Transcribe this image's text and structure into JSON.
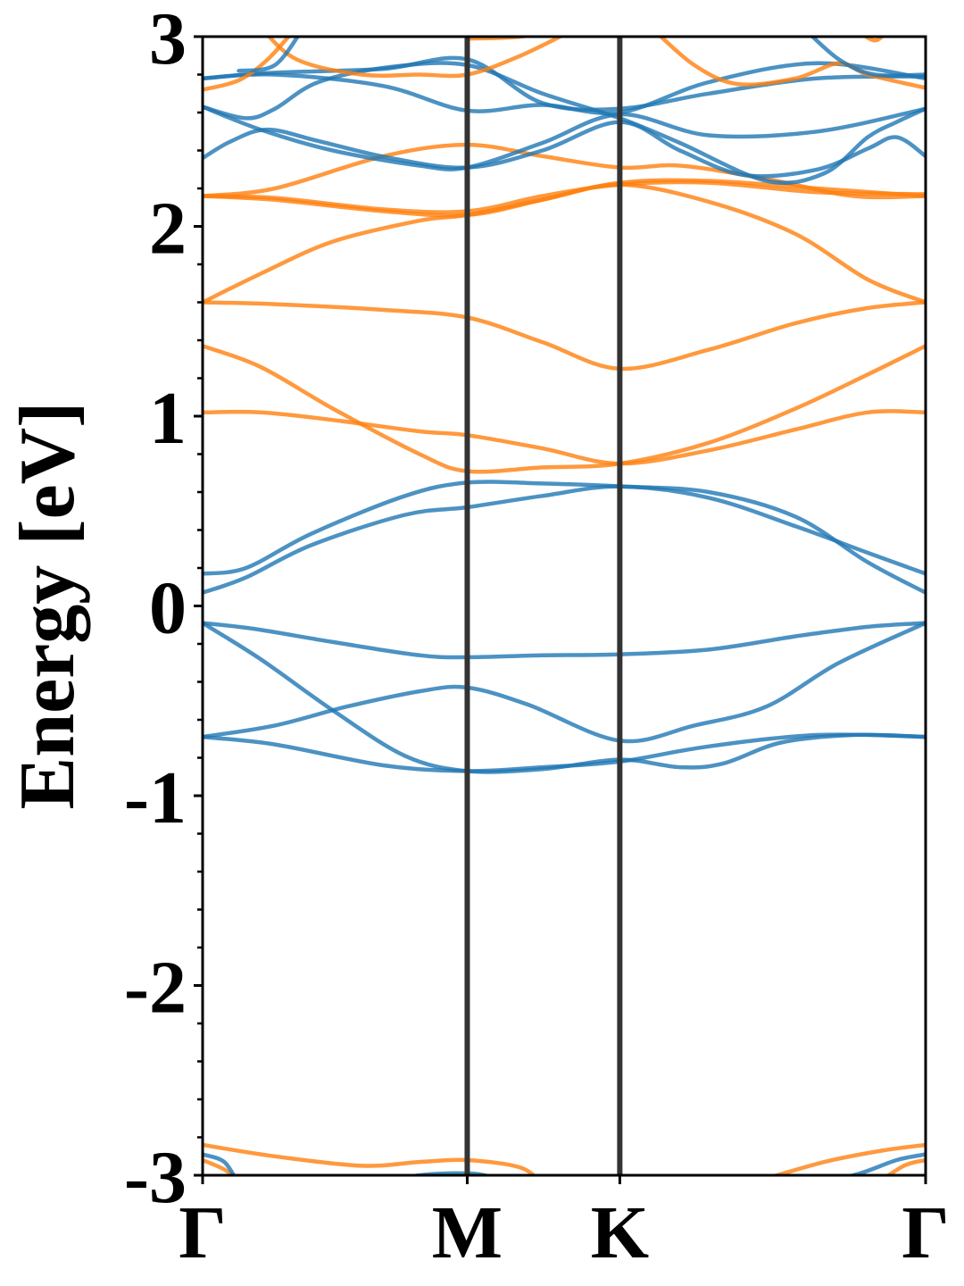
{
  "chart_data": {
    "type": "line",
    "title": "",
    "xlabel": "",
    "ylabel": "Energy [eV]",
    "ylim": [
      -3,
      3
    ],
    "xlim": [
      0,
      1
    ],
    "grid": false,
    "legend": "none",
    "x_ticks": [
      {
        "label": "Γ",
        "x": 0.0
      },
      {
        "label": "M",
        "x": 0.366
      },
      {
        "label": "K",
        "x": 0.577
      },
      {
        "label": "Γ",
        "x": 1.0
      }
    ],
    "y_ticks": [
      {
        "label": "3",
        "y": 3
      },
      {
        "label": "2",
        "y": 2
      },
      {
        "label": "1",
        "y": 1
      },
      {
        "label": "0",
        "y": 0
      },
      {
        "label": "-1",
        "y": -1
      },
      {
        "label": "-2",
        "y": -2
      },
      {
        "label": "-3",
        "y": -3
      }
    ],
    "y_minor_step": 0.2,
    "colors": {
      "blue": "#1f77b4",
      "orange": "#ff7f0e",
      "vline": "#333333"
    },
    "series": [
      {
        "color": "blue",
        "points": [
          [
            0,
            -0.09
          ],
          [
            0.07,
            -0.12
          ],
          [
            0.18,
            -0.19
          ],
          [
            0.3,
            -0.26
          ],
          [
            0.366,
            -0.27
          ],
          [
            0.47,
            -0.26
          ],
          [
            0.577,
            -0.255
          ],
          [
            0.7,
            -0.23
          ],
          [
            0.82,
            -0.16
          ],
          [
            0.92,
            -0.11
          ],
          [
            1.0,
            -0.09
          ]
        ]
      },
      {
        "color": "blue",
        "points": [
          [
            0,
            -0.09
          ],
          [
            0.08,
            -0.28
          ],
          [
            0.18,
            -0.55
          ],
          [
            0.28,
            -0.79
          ],
          [
            0.366,
            -0.87
          ],
          [
            0.47,
            -0.86
          ],
          [
            0.577,
            -0.81
          ],
          [
            0.66,
            -0.85
          ],
          [
            0.72,
            -0.83
          ],
          [
            0.8,
            -0.72
          ],
          [
            0.9,
            -0.68
          ],
          [
            1.0,
            -0.69
          ]
        ]
      },
      {
        "color": "blue",
        "points": [
          [
            0,
            -0.69
          ],
          [
            0.1,
            -0.63
          ],
          [
            0.2,
            -0.53
          ],
          [
            0.3,
            -0.45
          ],
          [
            0.366,
            -0.43
          ],
          [
            0.45,
            -0.52
          ],
          [
            0.577,
            -0.71
          ],
          [
            0.68,
            -0.63
          ],
          [
            0.78,
            -0.53
          ],
          [
            0.88,
            -0.3
          ],
          [
            1.0,
            -0.09
          ]
        ]
      },
      {
        "color": "blue",
        "points": [
          [
            0,
            -0.69
          ],
          [
            0.1,
            -0.73
          ],
          [
            0.25,
            -0.84
          ],
          [
            0.366,
            -0.87
          ],
          [
            0.47,
            -0.85
          ],
          [
            0.577,
            -0.82
          ],
          [
            0.7,
            -0.74
          ],
          [
            0.85,
            -0.68
          ],
          [
            1.0,
            -0.69
          ]
        ]
      },
      {
        "color": "blue",
        "points": [
          [
            0,
            0.07
          ],
          [
            0.06,
            0.15
          ],
          [
            0.15,
            0.32
          ],
          [
            0.28,
            0.48
          ],
          [
            0.366,
            0.52
          ],
          [
            0.47,
            0.58
          ],
          [
            0.577,
            0.63
          ],
          [
            0.7,
            0.57
          ],
          [
            0.82,
            0.42
          ],
          [
            0.92,
            0.28
          ],
          [
            1.0,
            0.17
          ]
        ]
      },
      {
        "color": "blue",
        "points": [
          [
            0,
            0.17
          ],
          [
            0.06,
            0.2
          ],
          [
            0.15,
            0.38
          ],
          [
            0.28,
            0.58
          ],
          [
            0.366,
            0.65
          ],
          [
            0.47,
            0.645
          ],
          [
            0.577,
            0.63
          ],
          [
            0.7,
            0.6
          ],
          [
            0.82,
            0.47
          ],
          [
            0.92,
            0.23
          ],
          [
            1.0,
            0.07
          ]
        ]
      },
      {
        "color": "orange",
        "points": [
          [
            0,
            1.02
          ],
          [
            0.08,
            1.02
          ],
          [
            0.18,
            0.98
          ],
          [
            0.3,
            0.92
          ],
          [
            0.366,
            0.9
          ],
          [
            0.47,
            0.83
          ],
          [
            0.577,
            0.75
          ],
          [
            0.7,
            0.82
          ],
          [
            0.82,
            0.93
          ],
          [
            0.92,
            1.02
          ],
          [
            1.0,
            1.02
          ]
        ]
      },
      {
        "color": "orange",
        "points": [
          [
            0,
            1.37
          ],
          [
            0.08,
            1.26
          ],
          [
            0.18,
            1.04
          ],
          [
            0.3,
            0.8
          ],
          [
            0.366,
            0.71
          ],
          [
            0.47,
            0.73
          ],
          [
            0.577,
            0.75
          ],
          [
            0.7,
            0.86
          ],
          [
            0.82,
            1.04
          ],
          [
            0.92,
            1.22
          ],
          [
            1.0,
            1.37
          ]
        ]
      },
      {
        "color": "orange",
        "points": [
          [
            0,
            1.6
          ],
          [
            0.1,
            1.59
          ],
          [
            0.25,
            1.56
          ],
          [
            0.366,
            1.52
          ],
          [
            0.47,
            1.39
          ],
          [
            0.577,
            1.25
          ],
          [
            0.7,
            1.35
          ],
          [
            0.82,
            1.49
          ],
          [
            0.92,
            1.57
          ],
          [
            1.0,
            1.6
          ]
        ]
      },
      {
        "color": "orange",
        "points": [
          [
            0,
            1.6
          ],
          [
            0.08,
            1.75
          ],
          [
            0.18,
            1.92
          ],
          [
            0.3,
            2.03
          ],
          [
            0.366,
            2.06
          ],
          [
            0.47,
            2.14
          ],
          [
            0.577,
            2.22
          ],
          [
            0.7,
            2.13
          ],
          [
            0.82,
            1.96
          ],
          [
            0.92,
            1.72
          ],
          [
            1.0,
            1.6
          ]
        ]
      },
      {
        "color": "orange",
        "points": [
          [
            0,
            2.16
          ],
          [
            0.1,
            2.14
          ],
          [
            0.25,
            2.08
          ],
          [
            0.366,
            2.06
          ],
          [
            0.47,
            2.14
          ],
          [
            0.577,
            2.23
          ],
          [
            0.7,
            2.24
          ],
          [
            0.85,
            2.2
          ],
          [
            1.0,
            2.16
          ]
        ]
      },
      {
        "color": "orange",
        "points": [
          [
            0,
            2.16
          ],
          [
            0.1,
            2.2
          ],
          [
            0.25,
            2.37
          ],
          [
            0.366,
            2.43
          ],
          [
            0.47,
            2.37
          ],
          [
            0.577,
            2.31
          ],
          [
            0.66,
            2.32
          ],
          [
            0.78,
            2.25
          ],
          [
            0.9,
            2.16
          ],
          [
            1.0,
            2.16
          ]
        ]
      },
      {
        "color": "orange",
        "points": [
          [
            0,
            2.16
          ],
          [
            0.1,
            2.15
          ],
          [
            0.25,
            2.09
          ],
          [
            0.366,
            2.08
          ],
          [
            0.47,
            2.16
          ],
          [
            0.577,
            2.22
          ],
          [
            0.7,
            2.23
          ],
          [
            0.85,
            2.18
          ],
          [
            1.0,
            2.17
          ]
        ]
      },
      {
        "color": "blue",
        "points": [
          [
            0,
            2.36
          ],
          [
            0.04,
            2.45
          ],
          [
            0.09,
            2.51
          ],
          [
            0.16,
            2.45
          ],
          [
            0.26,
            2.36
          ],
          [
            0.366,
            2.31
          ],
          [
            0.47,
            2.4
          ],
          [
            0.577,
            2.55
          ],
          [
            0.66,
            2.4
          ],
          [
            0.75,
            2.27
          ],
          [
            0.85,
            2.3
          ],
          [
            0.92,
            2.41
          ],
          [
            0.96,
            2.47
          ],
          [
            1.0,
            2.37
          ]
        ]
      },
      {
        "color": "blue",
        "points": [
          [
            0,
            2.63
          ],
          [
            0.06,
            2.57
          ],
          [
            0.1,
            2.62
          ],
          [
            0.16,
            2.76
          ],
          [
            0.26,
            2.84
          ],
          [
            0.366,
            2.85
          ],
          [
            0.47,
            2.7
          ],
          [
            0.577,
            2.57
          ],
          [
            0.66,
            2.44
          ],
          [
            0.78,
            2.24
          ],
          [
            0.86,
            2.28
          ],
          [
            0.92,
            2.47
          ],
          [
            0.96,
            2.55
          ],
          [
            1.0,
            2.62
          ]
        ]
      },
      {
        "color": "blue",
        "points": [
          [
            0,
            2.63
          ],
          [
            0.08,
            2.51
          ],
          [
            0.18,
            2.4
          ],
          [
            0.3,
            2.32
          ],
          [
            0.366,
            2.31
          ],
          [
            0.47,
            2.44
          ],
          [
            0.577,
            2.59
          ],
          [
            0.7,
            2.48
          ],
          [
            0.85,
            2.5
          ],
          [
            1.0,
            2.62
          ]
        ]
      },
      {
        "color": "blue",
        "points": [
          [
            0,
            2.78
          ],
          [
            0.1,
            2.8
          ],
          [
            0.25,
            2.74
          ],
          [
            0.366,
            2.61
          ],
          [
            0.47,
            2.64
          ],
          [
            0.577,
            2.6
          ],
          [
            0.7,
            2.76
          ],
          [
            0.85,
            2.86
          ],
          [
            1.0,
            2.78
          ]
        ]
      },
      {
        "color": "blue",
        "points": [
          [
            0,
            2.78
          ],
          [
            0.1,
            2.81
          ],
          [
            0.25,
            2.83
          ],
          [
            0.366,
            2.88
          ],
          [
            0.47,
            2.65
          ],
          [
            0.577,
            2.62
          ],
          [
            0.7,
            2.7
          ],
          [
            0.85,
            2.78
          ],
          [
            1.0,
            2.79
          ]
        ]
      },
      {
        "color": "orange",
        "points": [
          [
            0,
            2.72
          ],
          [
            0.05,
            2.77
          ],
          [
            0.09,
            2.88
          ],
          [
            0.13,
            3.05
          ]
        ]
      },
      {
        "color": "orange",
        "points": [
          [
            0.08,
            3.05
          ],
          [
            0.13,
            2.88
          ],
          [
            0.22,
            2.8
          ],
          [
            0.3,
            2.8
          ],
          [
            0.366,
            2.8
          ],
          [
            0.44,
            2.9
          ],
          [
            0.52,
            3.05
          ]
        ]
      },
      {
        "color": "orange",
        "points": [
          [
            0.366,
            2.99
          ],
          [
            0.44,
            3.0
          ],
          [
            0.5,
            3.05
          ]
        ]
      },
      {
        "color": "orange",
        "points": [
          [
            0.62,
            3.05
          ],
          [
            0.68,
            2.85
          ],
          [
            0.74,
            2.75
          ],
          [
            0.82,
            2.78
          ],
          [
            0.88,
            2.86
          ],
          [
            0.92,
            2.8
          ],
          [
            1.0,
            2.73
          ]
        ]
      },
      {
        "color": "blue",
        "points": [
          [
            0.83,
            3.05
          ],
          [
            0.88,
            2.88
          ],
          [
            0.93,
            2.8
          ],
          [
            1.0,
            2.8
          ]
        ]
      },
      {
        "color": "orange",
        "points": [
          [
            0.9,
            3.05
          ],
          [
            0.93,
            2.98
          ],
          [
            0.95,
            3.05
          ]
        ]
      },
      {
        "color": "blue",
        "points": [
          [
            0.05,
            2.82
          ],
          [
            0.1,
            2.85
          ],
          [
            0.14,
            3.05
          ]
        ]
      },
      {
        "color": "orange",
        "points": [
          [
            0,
            -2.84
          ],
          [
            0.1,
            -2.9
          ],
          [
            0.22,
            -2.95
          ],
          [
            0.3,
            -2.93
          ],
          [
            0.366,
            -2.92
          ],
          [
            0.44,
            -2.96
          ],
          [
            0.47,
            -3.05
          ]
        ]
      },
      {
        "color": "blue",
        "points": [
          [
            0.24,
            -3.05
          ],
          [
            0.3,
            -3.0
          ],
          [
            0.366,
            -2.99
          ],
          [
            0.4,
            -3.01
          ],
          [
            0.42,
            -3.05
          ]
        ]
      },
      {
        "color": "orange",
        "points": [
          [
            0,
            -2.92
          ],
          [
            0.03,
            -2.97
          ],
          [
            0.06,
            -3.05
          ]
        ]
      },
      {
        "color": "blue",
        "points": [
          [
            0,
            -2.89
          ],
          [
            0.03,
            -2.93
          ],
          [
            0.05,
            -3.05
          ]
        ]
      },
      {
        "color": "orange",
        "points": [
          [
            0.75,
            -3.05
          ],
          [
            0.86,
            -2.93
          ],
          [
            0.94,
            -2.87
          ],
          [
            1.0,
            -2.84
          ]
        ]
      },
      {
        "color": "blue",
        "points": [
          [
            0.82,
            -3.05
          ],
          [
            0.9,
            -3.0
          ],
          [
            0.96,
            -2.92
          ],
          [
            1.0,
            -2.89
          ]
        ]
      },
      {
        "color": "orange",
        "points": [
          [
            0.93,
            -3.05
          ],
          [
            0.97,
            -2.95
          ],
          [
            1.0,
            -2.92
          ]
        ]
      }
    ]
  }
}
